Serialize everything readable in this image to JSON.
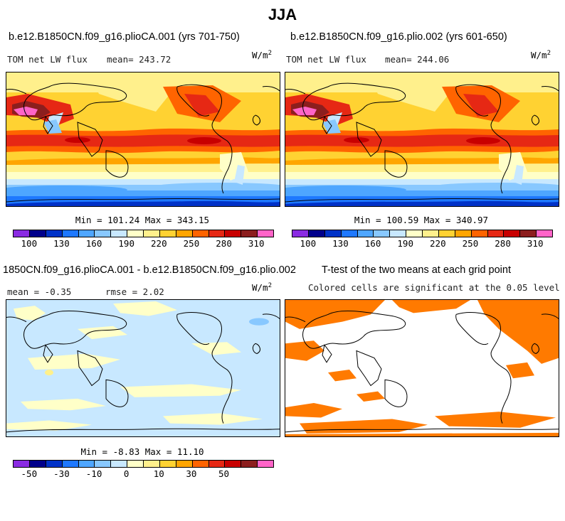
{
  "title": "JJA",
  "panels": [
    {
      "title": "b.e12.B1850CN.f09_g16.plioCA.001 (yrs 701-750)",
      "variable": "TOM net LW flux",
      "mean_text": "mean= 243.72",
      "units": "W/m",
      "units_sup": "2",
      "minmax": "Min = 101.24 Max = 343.15"
    },
    {
      "title": "b.e12.B1850CN.f09_g16.plio.002 (yrs 601-650)",
      "variable": "TOM net LW flux",
      "mean_text": "mean= 244.06",
      "units": "W/m",
      "units_sup": "2",
      "minmax": "Min = 100.59 Max = 340.97"
    },
    {
      "title": "1850CN.f09_g16.plioCA.001 - b.e12.B1850CN.f09_g16.plio.002",
      "mean_text": "mean = -0.35",
      "rmse_text": "rmse = 2.02",
      "units": "W/m",
      "units_sup": "2",
      "minmax": "Min = -8.83 Max = 11.10"
    },
    {
      "title": "T-test of the two means at each grid point",
      "subtitle": "Colored cells are significant at the 0.05 level"
    }
  ],
  "colorbar_abs": {
    "ticks": [
      "100",
      "130",
      "160",
      "190",
      "220",
      "250",
      "280",
      "310"
    ],
    "colors": [
      "#8a2be2",
      "#00008b",
      "#0032c8",
      "#1e78ff",
      "#4ea6ff",
      "#88c8ff",
      "#c8e8ff",
      "#ffffc8",
      "#fff08c",
      "#ffd232",
      "#ffa500",
      "#ff6400",
      "#e62814",
      "#c80000",
      "#8c1e1e",
      "#ff64c8"
    ]
  },
  "colorbar_diff": {
    "ticks": [
      "-50",
      "-30",
      "-10",
      "0",
      "10",
      "30",
      "50"
    ],
    "colors": [
      "#8a2be2",
      "#00008b",
      "#0032c8",
      "#1e78ff",
      "#4ea6ff",
      "#88c8ff",
      "#c8e8ff",
      "#ffffc8",
      "#fff08c",
      "#ffd232",
      "#ffa500",
      "#ff6400",
      "#e62814",
      "#c80000",
      "#8c1e1e",
      "#ff64c8"
    ]
  },
  "ttest_color": "#ff7a00",
  "chart_data": [
    {
      "type": "heatmap",
      "title": "b.e12.B1850CN.f09_g16.plioCA.001 (yrs 701-750)",
      "variable": "TOM net LW flux",
      "units": "W/m2",
      "mean": 243.72,
      "min": 101.24,
      "max": 343.15,
      "levels": [
        100,
        115,
        130,
        145,
        160,
        175,
        190,
        205,
        220,
        235,
        250,
        265,
        280,
        295,
        310
      ]
    },
    {
      "type": "heatmap",
      "title": "b.e12.B1850CN.f09_g16.plio.002 (yrs 601-650)",
      "variable": "TOM net LW flux",
      "units": "W/m2",
      "mean": 244.06,
      "min": 100.59,
      "max": 340.97,
      "levels": [
        100,
        115,
        130,
        145,
        160,
        175,
        190,
        205,
        220,
        235,
        250,
        265,
        280,
        295,
        310
      ]
    },
    {
      "type": "heatmap",
      "title": "1850CN.f09_g16.plioCA.001 - b.e12.B1850CN.f09_g16.plio.002",
      "units": "W/m2",
      "mean": -0.35,
      "rmse": 2.02,
      "min": -8.83,
      "max": 11.1,
      "levels": [
        -50,
        -40,
        -30,
        -20,
        -10,
        -5,
        0,
        5,
        10,
        20,
        30,
        40,
        50
      ]
    },
    {
      "type": "heatmap",
      "title": "T-test of the two means at each grid point",
      "note": "Colored cells are significant at the 0.05 level",
      "significance_level": 0.05
    }
  ]
}
